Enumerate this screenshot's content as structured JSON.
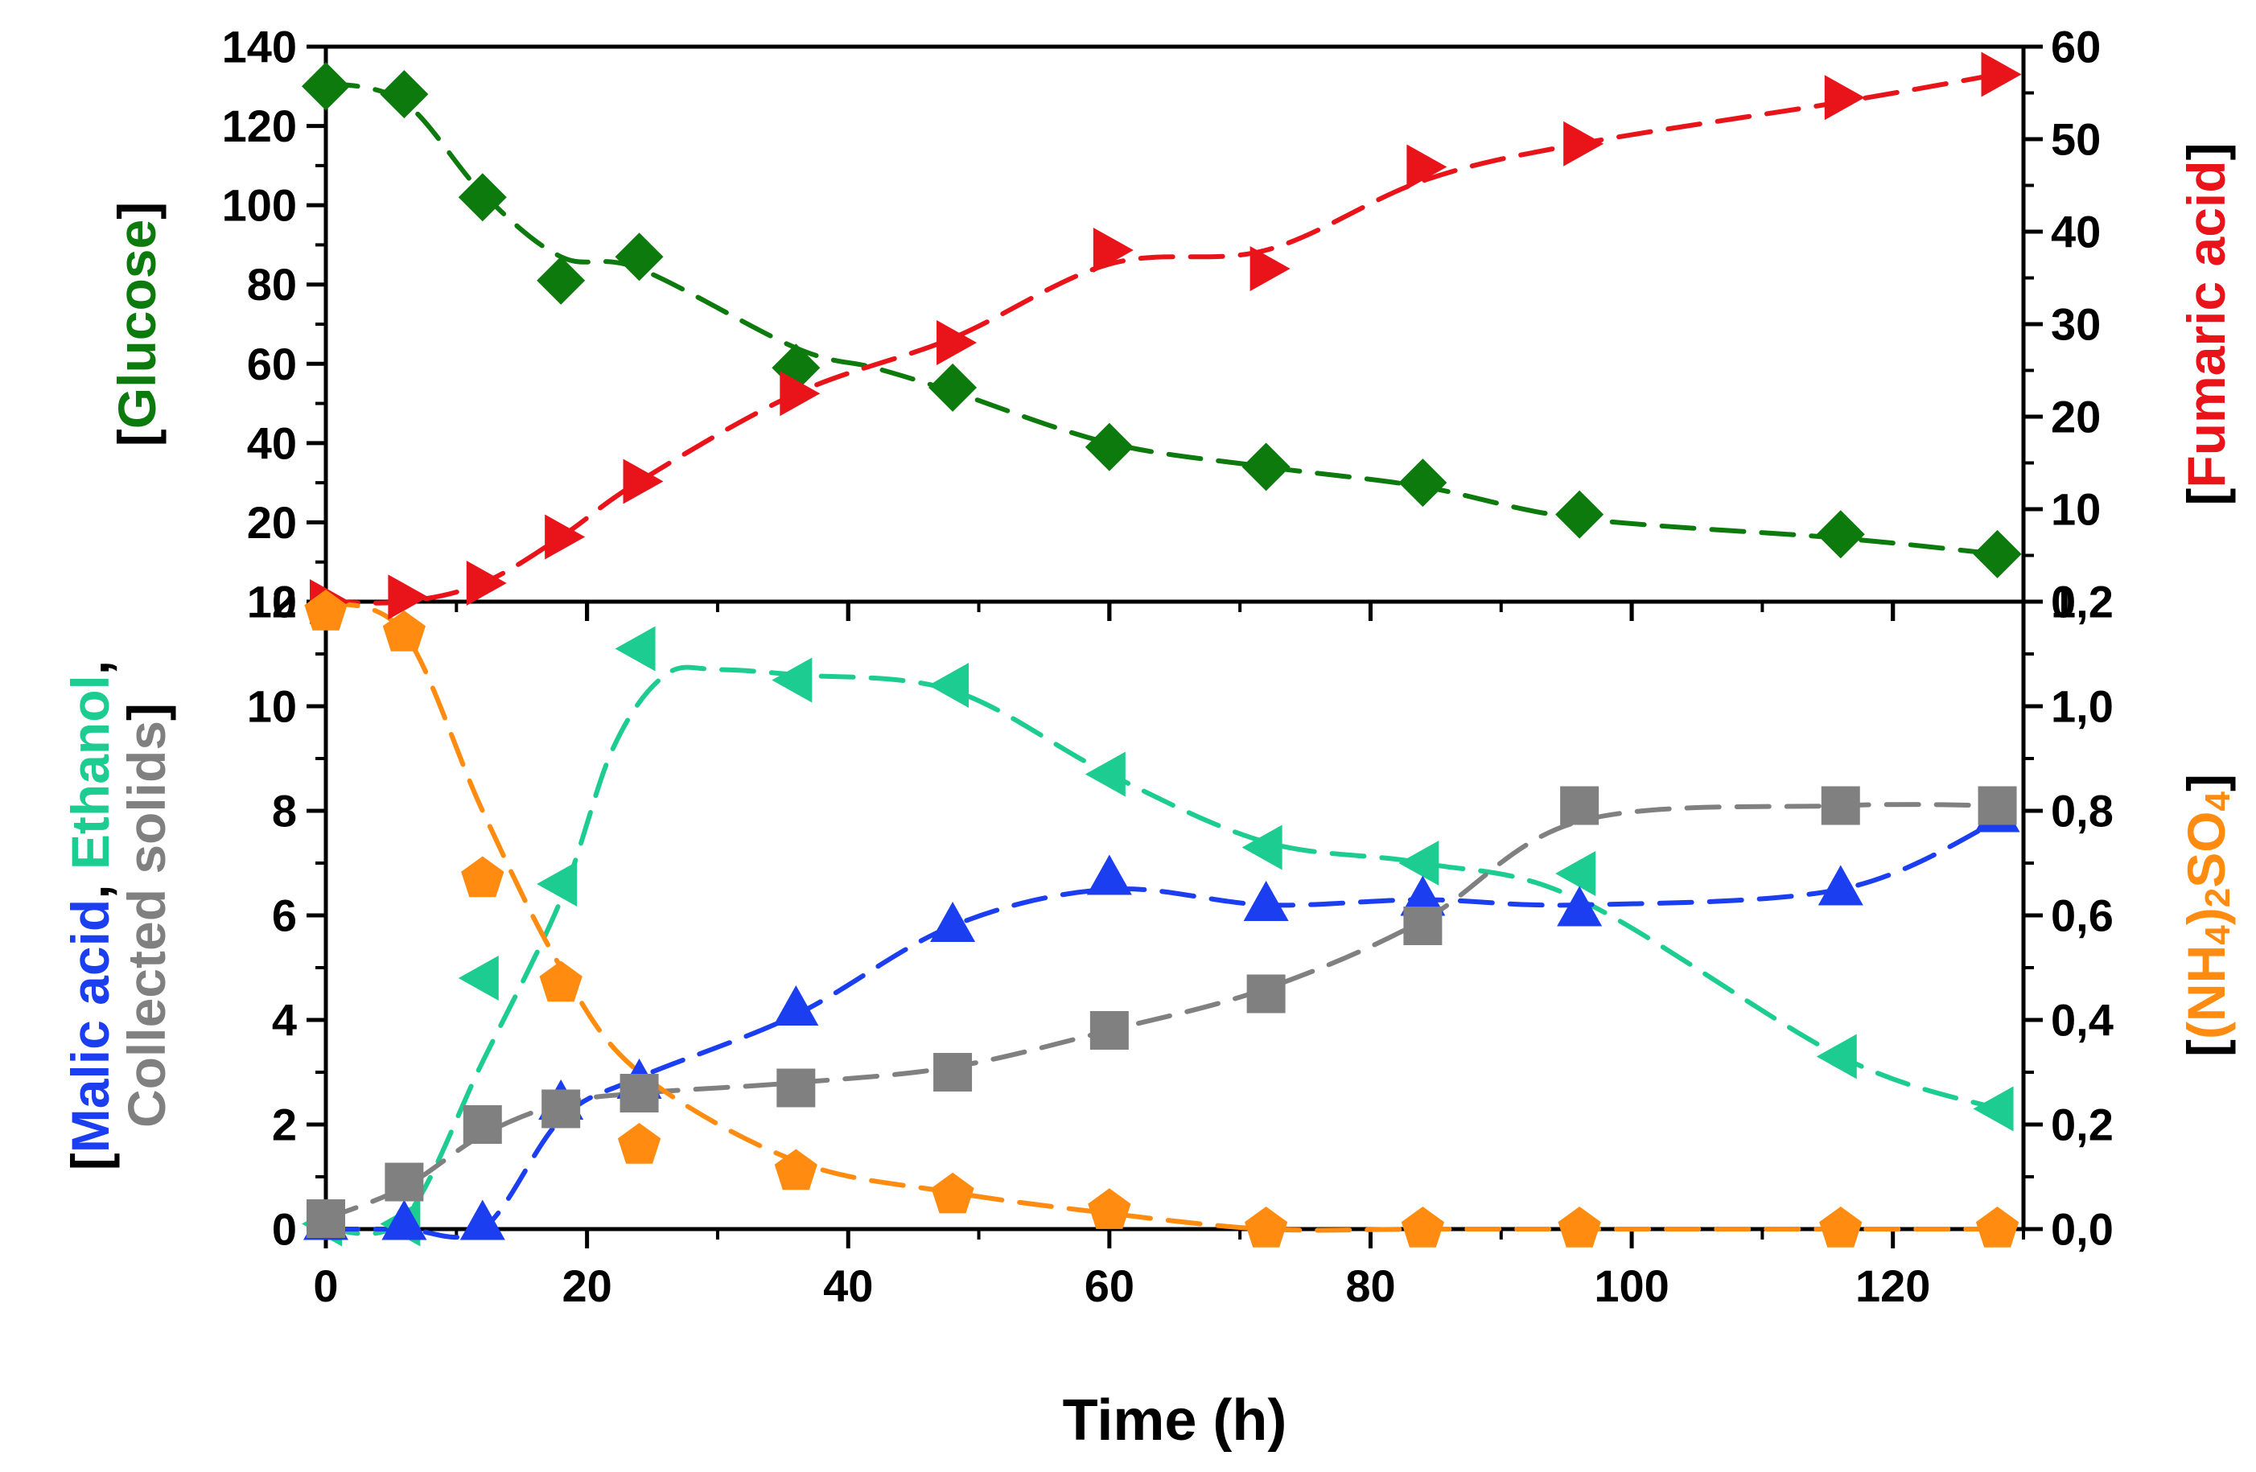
{
  "chart_data": [
    {
      "panel": "top",
      "type": "scatter",
      "y_left": {
        "title": {
          "open": "[",
          "name": "Glucose",
          "close": "]"
        },
        "range": [
          0,
          140
        ],
        "ticks": [
          "0",
          "20",
          "40",
          "60",
          "80",
          "100",
          "120",
          "140"
        ]
      },
      "y_right": {
        "title": {
          "open": "[",
          "name": "Fumaric acid",
          "close": "]"
        },
        "range": [
          0,
          60
        ],
        "ticks": [
          "0",
          "10",
          "20",
          "30",
          "40",
          "50",
          "60"
        ]
      },
      "series": [
        {
          "name": "Glucose",
          "axis": "left",
          "marker": "diamond",
          "color": "#0d7a0d",
          "x": [
            0,
            6,
            12,
            18,
            24,
            36,
            48,
            60,
            72,
            84,
            96,
            116,
            128
          ],
          "y": [
            130,
            128,
            102,
            81,
            87,
            59,
            54,
            39,
            34,
            30,
            22,
            17,
            12
          ],
          "fit": [
            [
              0,
              131
            ],
            [
              6,
              126
            ],
            [
              12,
              103
            ],
            [
              18,
              87
            ],
            [
              24,
              84
            ],
            [
              36,
              64
            ],
            [
              42,
              59
            ],
            [
              48,
              53
            ],
            [
              60,
              40
            ],
            [
              72,
              34
            ],
            [
              84,
              29
            ],
            [
              96,
              21
            ],
            [
              116,
              16
            ],
            [
              128,
              12
            ]
          ]
        },
        {
          "name": "Fumaric acid",
          "axis": "right",
          "marker": "triangle-right",
          "color": "#e8141a",
          "x": [
            0,
            6,
            12,
            18,
            24,
            36,
            48,
            60,
            72,
            84,
            96,
            116,
            128
          ],
          "y": [
            0,
            0.5,
            2,
            7,
            13,
            22.5,
            28,
            38,
            36,
            47,
            49.5,
            54.5,
            57
          ],
          "fit": [
            [
              0,
              0
            ],
            [
              6,
              0
            ],
            [
              12,
              2
            ],
            [
              18,
              7
            ],
            [
              24,
              13
            ],
            [
              36,
              22.5
            ],
            [
              48,
              28.5
            ],
            [
              60,
              36.5
            ],
            [
              72,
              38
            ],
            [
              84,
              45.5
            ],
            [
              96,
              49.5
            ],
            [
              116,
              54
            ],
            [
              128,
              57
            ]
          ]
        }
      ]
    },
    {
      "panel": "bottom",
      "type": "scatter",
      "y_left": {
        "title": {
          "line1": [
            {
              "text": "[",
              "color": "#000000"
            },
            {
              "text": "Malic acid",
              "color": "#1a3ef0"
            },
            {
              "text": ", ",
              "color": "#000000"
            },
            {
              "text": "Ethanol",
              "color": "#1dcc91"
            },
            {
              "text": ",",
              "color": "#000000"
            }
          ],
          "line2": [
            {
              "text": "Collected solids",
              "color": "#808080"
            },
            {
              "text": "]",
              "color": "#000000"
            }
          ]
        },
        "range": [
          0,
          12
        ],
        "ticks": [
          "0",
          "2",
          "4",
          "6",
          "8",
          "10",
          "12"
        ]
      },
      "y_right": {
        "title": {
          "open": "[",
          "close": "]",
          "base1": "(NH",
          "sub1": "4",
          "base2": ")",
          "sub2": "2",
          "base3": "SO",
          "sub3": "4"
        },
        "range": [
          0,
          1.2
        ],
        "ticks": [
          "0,0",
          "0,2",
          "0,4",
          "0,6",
          "0,8",
          "1,0",
          "1,2"
        ]
      },
      "series": [
        {
          "name": "Ethanol",
          "axis": "left",
          "marker": "triangle-left",
          "color": "#1dcc91",
          "x": [
            0,
            6,
            12,
            18,
            24,
            36,
            48,
            60,
            72,
            84,
            96,
            116,
            128
          ],
          "y": [
            0.1,
            0.1,
            4.8,
            6.6,
            11.1,
            10.5,
            10.4,
            8.7,
            7.3,
            7,
            6.8,
            3.3,
            2.3
          ],
          "fit": [
            [
              0,
              0
            ],
            [
              6,
              0.2
            ],
            [
              12,
              3.2
            ],
            [
              18,
              6.3
            ],
            [
              22,
              9.2
            ],
            [
              26,
              10.6
            ],
            [
              30,
              10.7
            ],
            [
              36,
              10.6
            ],
            [
              48,
              10.3
            ],
            [
              60,
              8.7
            ],
            [
              72,
              7.4
            ],
            [
              84,
              7
            ],
            [
              96,
              6.3
            ],
            [
              116,
              3.3
            ],
            [
              128,
              2.3
            ]
          ]
        },
        {
          "name": "Malic acid",
          "axis": "left",
          "marker": "triangle-up",
          "color": "#1a3ef0",
          "x": [
            0,
            6,
            12,
            18,
            24,
            36,
            48,
            60,
            72,
            84,
            96,
            116,
            128
          ],
          "y": [
            0.1,
            0.1,
            0.1,
            2.4,
            2.8,
            4.2,
            5.8,
            6.7,
            6.2,
            6.3,
            6.1,
            6.5,
            7.9
          ],
          "fit": [
            [
              0,
              0
            ],
            [
              6,
              0
            ],
            [
              12,
              0
            ],
            [
              18,
              2.1
            ],
            [
              24,
              2.9
            ],
            [
              36,
              4.1
            ],
            [
              48,
              5.8
            ],
            [
              60,
              6.5
            ],
            [
              72,
              6.2
            ],
            [
              84,
              6.3
            ],
            [
              96,
              6.2
            ],
            [
              116,
              6.5
            ],
            [
              128,
              7.8
            ]
          ]
        },
        {
          "name": "Collected solids",
          "axis": "left",
          "marker": "square",
          "color": "#808080",
          "x": [
            0,
            6,
            12,
            18,
            24,
            36,
            48,
            60,
            72,
            84,
            96,
            116,
            128
          ],
          "y": [
            0.2,
            0.9,
            2,
            2.3,
            2.6,
            2.7,
            3,
            3.8,
            4.5,
            5.8,
            8.1,
            8.1,
            8.1
          ],
          "fit": [
            [
              0,
              0.2
            ],
            [
              6,
              0.8
            ],
            [
              12,
              1.8
            ],
            [
              18,
              2.4
            ],
            [
              24,
              2.6
            ],
            [
              36,
              2.8
            ],
            [
              48,
              3.1
            ],
            [
              60,
              3.8
            ],
            [
              72,
              4.6
            ],
            [
              84,
              5.9
            ],
            [
              96,
              7.8
            ],
            [
              116,
              8.1
            ],
            [
              128,
              8.1
            ]
          ]
        },
        {
          "name": "(NH4)2SO4",
          "axis": "right",
          "marker": "pentagon",
          "color": "#ff8c10",
          "x": [
            0,
            6,
            12,
            18,
            24,
            36,
            48,
            60,
            72,
            84,
            96,
            116,
            128
          ],
          "y": [
            1.18,
            1.14,
            0.67,
            0.47,
            0.16,
            0.11,
            0.065,
            0.035,
            0,
            0,
            0,
            0,
            0
          ],
          "fit": [
            [
              0,
              1.2
            ],
            [
              6,
              1.14
            ],
            [
              12,
              0.8
            ],
            [
              18,
              0.5
            ],
            [
              24,
              0.3
            ],
            [
              36,
              0.13
            ],
            [
              48,
              0.07
            ],
            [
              60,
              0.03
            ],
            [
              72,
              0
            ],
            [
              84,
              0
            ],
            [
              96,
              0
            ],
            [
              116,
              0
            ],
            [
              128,
              0
            ]
          ]
        }
      ]
    }
  ],
  "x_axis": {
    "title": "Time (h)",
    "range": [
      0,
      130
    ],
    "ticks": [
      "0",
      "20",
      "40",
      "60",
      "80",
      "100",
      "120"
    ]
  }
}
